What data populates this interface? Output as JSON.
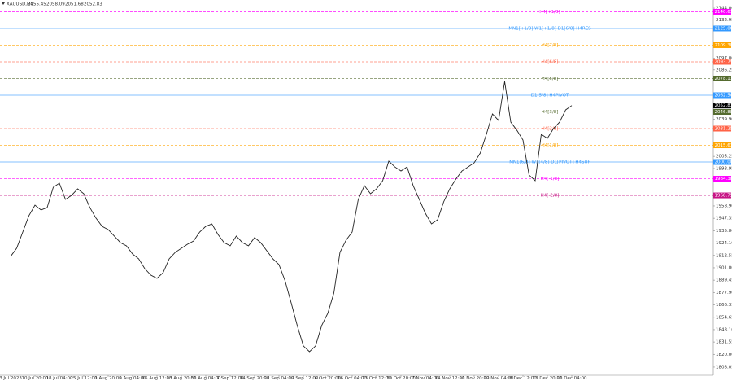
{
  "header": {
    "symbol": "XAUUSD,H4",
    "open": 2055.45,
    "high": 2058.09,
    "low": 2051.68,
    "close": 2052.83
  },
  "chart_data": {
    "type": "line",
    "color": "#222222",
    "categories": [
      "3 Jul 2023",
      null,
      null,
      null,
      "10 Jul 20:00",
      null,
      null,
      null,
      "18 Jul 04:00",
      null,
      null,
      null,
      "25 Jul 12:00",
      null,
      null,
      null,
      "1 Aug 20:00",
      null,
      null,
      null,
      "9 Aug 04:00",
      null,
      null,
      null,
      "16 Aug 12:00",
      null,
      null,
      null,
      "23 Aug 20:00",
      null,
      null,
      null,
      "31 Aug 04:00",
      null,
      null,
      null,
      "7 Sep 12:00",
      null,
      null,
      null,
      "14 Sep 20:00",
      null,
      null,
      null,
      "22 Sep 04:00",
      null,
      null,
      null,
      "29 Sep 12:00",
      null,
      null,
      null,
      "6 Oct 20:00",
      null,
      null,
      null,
      "16 Oct 04:00",
      null,
      null,
      null,
      "23 Oct 12:00",
      null,
      null,
      null,
      "30 Oct 20:00",
      null,
      null,
      null,
      "7 Nov 04:00",
      null,
      null,
      null,
      "14 Nov 12:00",
      null,
      null,
      null,
      "21 Nov 20:00",
      null,
      null,
      null,
      "29 Nov 04:00",
      null,
      null,
      null,
      "6 Dec 12:00",
      null,
      null,
      null,
      "13 Dec 20:00",
      null,
      null,
      null,
      "21 Dec 04:00"
    ],
    "values": [
      1911.6,
      1919.3,
      1934.5,
      1949.7,
      1959.6,
      1955.1,
      1957.4,
      1976.4,
      1980.2,
      1965.0,
      1968.8,
      1974.9,
      1970.3,
      1957.4,
      1947.5,
      1939.8,
      1936.8,
      1930.7,
      1924.6,
      1921.6,
      1913.9,
      1909.4,
      1900.2,
      1894.1,
      1891.1,
      1896.4,
      1909.4,
      1915.5,
      1919.3,
      1923.1,
      1926.1,
      1934.5,
      1939.8,
      1942.1,
      1932.2,
      1924.6,
      1921.6,
      1930.7,
      1924.6,
      1921.6,
      1929.2,
      1924.6,
      1917.0,
      1909.4,
      1904.0,
      1888.8,
      1868.2,
      1846.9,
      1827.9,
      1822.5,
      1827.9,
      1846.9,
      1858.3,
      1877.4,
      1915.5,
      1926.9,
      1934.5,
      1965.0,
      1977.9,
      1970.3,
      1974.9,
      1982.5,
      2000.8,
      1995.4,
      1991.6,
      1995.4,
      1977.9,
      1965.0,
      1952.0,
      1942.1,
      1945.9,
      1962.7,
      1974.9,
      1984.0,
      1991.6,
      1995.4,
      1999.3,
      2008.4,
      2025.9,
      2045.0,
      2038.9,
      2075.4,
      2037.3,
      2029.7,
      2020.6,
      1987.8,
      1982.5,
      2025.9,
      2022.1,
      2031.3,
      2037.3,
      2048.8,
      2052.83
    ],
    "ylim": [
      1800.4,
      2148.6
    ],
    "yticks": [
      {
        "value": 2144,
        "label": "2144.00"
      },
      {
        "value": 2132.95,
        "label": "2132.95"
      },
      {
        "value": 2097,
        "label": "2097.00"
      },
      {
        "value": 2086.25,
        "label": "2086.25"
      },
      {
        "value": 2039.9,
        "label": "2039.90"
      },
      {
        "value": 2005.25,
        "label": "2005.25"
      },
      {
        "value": 1993.95,
        "label": "1993.95"
      },
      {
        "value": 1958.9,
        "label": "1958.90"
      },
      {
        "value": 1947.35,
        "label": "1947.35"
      },
      {
        "value": 1935.8,
        "label": "1935.80"
      },
      {
        "value": 1924.1,
        "label": "1924.10"
      },
      {
        "value": 1912.55,
        "label": "1912.55"
      },
      {
        "value": 1901,
        "label": "1901.00"
      },
      {
        "value": 1889.45,
        "label": "1889.45"
      },
      {
        "value": 1877.9,
        "label": "1877.90"
      },
      {
        "value": 1866.35,
        "label": "1866.35"
      },
      {
        "value": 1854.65,
        "label": "1854.65"
      },
      {
        "value": 1843.1,
        "label": "1843.10"
      },
      {
        "value": 1831.55,
        "label": "1831.55"
      },
      {
        "value": 1820,
        "label": "1820.00"
      },
      {
        "value": 1808.05,
        "label": "1808.05"
      }
    ],
    "levels": {
      "names": [
        "H4[+1/8]",
        "MN1[+1/8] W1[+1/8] D1[6/8] H4RES",
        "H4[7/8]",
        "H4[6/8]",
        "H4[5/8]",
        "D1[5/8] H4PIVOT",
        "H4[3/8]",
        "H4[2/8]",
        "H4[1/8]",
        "MN1[6/8] W1[4/8] D1[PIVOT] H4SUP",
        "H4[-1/8]",
        "H4[-2/8]"
      ],
      "values": [
        2140.63,
        2125,
        2109.38,
        2093.75,
        2078.13,
        2062.5,
        2046.88,
        2031.25,
        2015.63,
        2000,
        1984.38,
        1968.75
      ],
      "value_labels": [
        "2140.63",
        "2125.00",
        "2109.38",
        "2093.75",
        "2078.13",
        "2062.50",
        "2046.88",
        "2031.25",
        "2015.63",
        "2000.00",
        "1984.38",
        "1968.75"
      ],
      "colors": [
        "#ff00ff",
        "#3399ff",
        "#ffa500",
        "#ff6347",
        "#556b2f",
        "#3399ff",
        "#556b2f",
        "#ff6347",
        "#ffa500",
        "#3399ff",
        "#ff00ff",
        "#c71585"
      ],
      "dashed": [
        true,
        false,
        true,
        true,
        true,
        false,
        true,
        true,
        true,
        false,
        true,
        true
      ]
    }
  }
}
